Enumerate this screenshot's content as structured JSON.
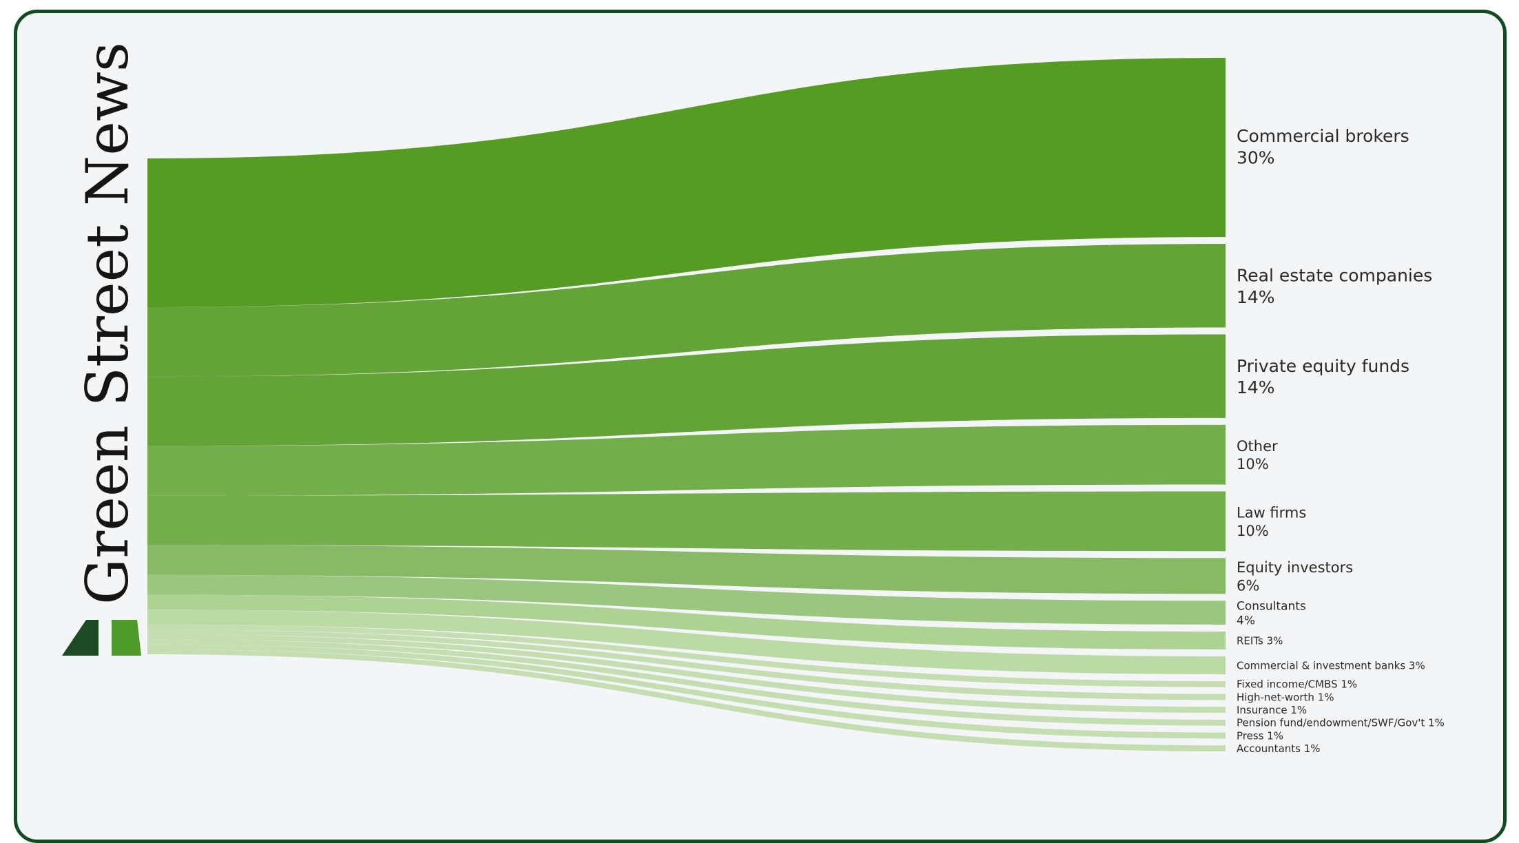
{
  "brand": {
    "name": "Green Street News",
    "logo_colors": [
      "#1d4a22",
      "#4e9a2a"
    ]
  },
  "chart_data": {
    "type": "sankey",
    "source": "Green Street News",
    "targets": [
      {
        "name": "Commercial brokers",
        "value": 30,
        "label": "30%",
        "inline": false,
        "color": "#559b24"
      },
      {
        "name": "Real estate companies",
        "value": 14,
        "label": "14%",
        "inline": false,
        "color": "#63a338"
      },
      {
        "name": "Private equity funds",
        "value": 14,
        "label": "14%",
        "inline": false,
        "color": "#63a338"
      },
      {
        "name": "Other",
        "value": 10,
        "label": "10%",
        "inline": false,
        "color": "#74ae4c"
      },
      {
        "name": "Law firms",
        "value": 10,
        "label": "10%",
        "inline": false,
        "color": "#74ae4c"
      },
      {
        "name": "Equity investors",
        "value": 6,
        "label": "6%",
        "inline": false,
        "color": "#88b967"
      },
      {
        "name": "Consultants",
        "value": 4,
        "label": "4%",
        "inline": false,
        "color": "#9bc67f"
      },
      {
        "name": "REITs",
        "value": 3,
        "label": "3%",
        "inline": true,
        "color": "#aed293"
      },
      {
        "name": "Commercial & investment banks",
        "value": 3,
        "label": "3%",
        "inline": true,
        "color": "#bcdaa6"
      },
      {
        "name": "Fixed income/CMBS",
        "value": 1,
        "label": "1%",
        "inline": true,
        "color": "#c4ddb1"
      },
      {
        "name": "High-net-worth",
        "value": 1,
        "label": "1%",
        "inline": true,
        "color": "#c4ddb1"
      },
      {
        "name": "Insurance",
        "value": 1,
        "label": "1%",
        "inline": true,
        "color": "#c4ddb1"
      },
      {
        "name": "Pension fund/endowment/SWF/Gov't",
        "value": 1,
        "label": "1%",
        "inline": true,
        "color": "#c4ddb1"
      },
      {
        "name": "Press",
        "value": 1,
        "label": "1%",
        "inline": true,
        "color": "#c4ddb1"
      },
      {
        "name": "Accountants",
        "value": 1,
        "label": "1%",
        "inline": true,
        "color": "#c4ddb1"
      }
    ]
  }
}
